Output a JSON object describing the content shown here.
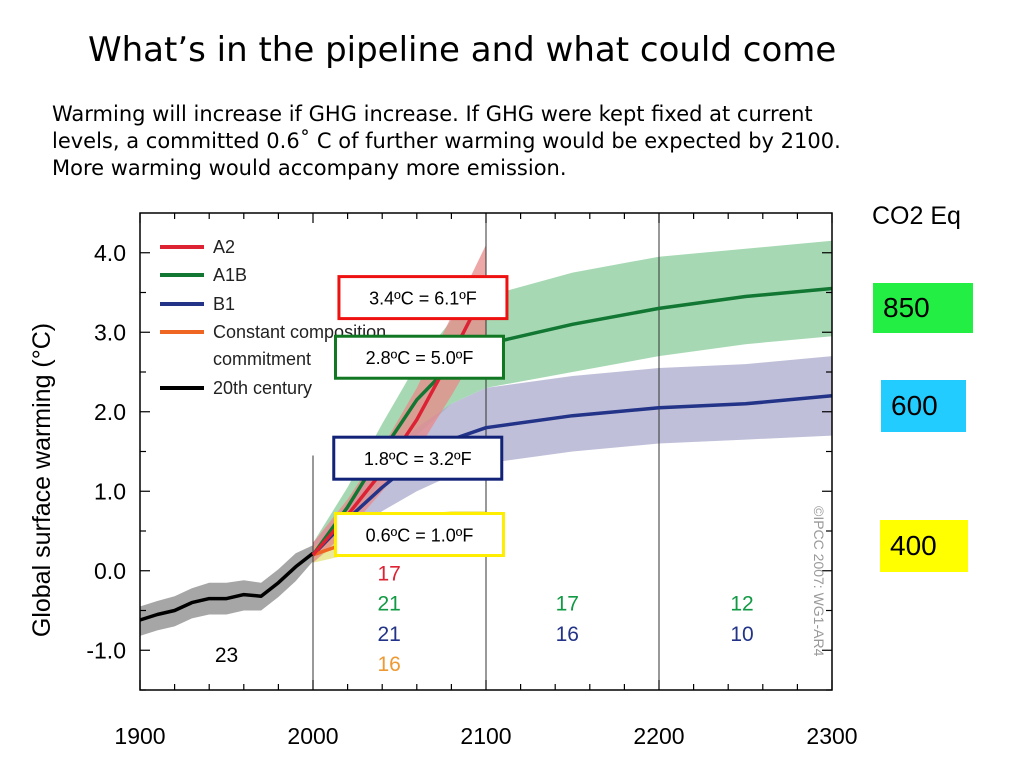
{
  "slide": {
    "title": "What’s in the pipeline and what could come",
    "body_lines": [
      "Warming will increase if GHG increase.   If GHG were kept fixed at current",
      "levels, a committed 0.6˚  C of further warming would be expected by 2100.",
      "More warming would accompany more emission."
    ]
  },
  "co2": {
    "title": "CO2 Eq",
    "boxes": [
      {
        "label": "850",
        "color": "#22ee44"
      },
      {
        "label": "600",
        "color": "#22ccff"
      },
      {
        "label": "400",
        "color": "#ffff00"
      }
    ]
  },
  "chart_data": {
    "type": "line",
    "ylabel": "Global surface warming (°C)",
    "xlabel": "",
    "xlim": [
      1900,
      2300
    ],
    "ylim": [
      -1.5,
      4.5
    ],
    "x_ticks": [
      "1900",
      "2000",
      "2100",
      "2200",
      "2300"
    ],
    "y_ticks": [
      "-1.0",
      "0.0",
      "1.0",
      "2.0",
      "3.0",
      "4.0"
    ],
    "grid": "vertical lines at 2100 and 2200",
    "legend": {
      "placement": "top-left"
    },
    "watermark": "©IPCC  2007: WG1-AR4",
    "series": [
      {
        "name": "A2",
        "color": "#dd2233",
        "band_color": "#e88a8a",
        "x": [
          2000,
          2020,
          2040,
          2060,
          2080,
          2100
        ],
        "y": [
          0.2,
          0.7,
          1.25,
          1.9,
          2.7,
          3.55
        ],
        "upper": [
          0.35,
          0.9,
          1.55,
          2.3,
          3.2,
          4.1
        ],
        "lower": [
          0.1,
          0.5,
          1.0,
          1.5,
          2.2,
          2.95
        ]
      },
      {
        "name": "A1B",
        "color": "#117733",
        "band_color": "#88cc99",
        "x": [
          2000,
          2020,
          2040,
          2060,
          2080,
          2100,
          2150,
          2200,
          2250,
          2300
        ],
        "y": [
          0.2,
          0.8,
          1.5,
          2.15,
          2.6,
          2.85,
          3.1,
          3.3,
          3.45,
          3.55
        ],
        "upper": [
          0.35,
          1.05,
          1.85,
          2.6,
          3.15,
          3.45,
          3.75,
          3.95,
          4.05,
          4.15
        ],
        "lower": [
          0.1,
          0.55,
          1.15,
          1.7,
          2.1,
          2.3,
          2.5,
          2.7,
          2.85,
          2.95
        ]
      },
      {
        "name": "B1",
        "color": "#223388",
        "band_color": "#aaaacc",
        "x": [
          2000,
          2020,
          2040,
          2060,
          2080,
          2100,
          2150,
          2200,
          2250,
          2300
        ],
        "y": [
          0.2,
          0.65,
          1.05,
          1.4,
          1.65,
          1.8,
          1.95,
          2.05,
          2.1,
          2.2
        ],
        "upper": [
          0.35,
          0.85,
          1.4,
          1.8,
          2.1,
          2.3,
          2.45,
          2.55,
          2.6,
          2.7
        ],
        "lower": [
          0.1,
          0.45,
          0.75,
          1.0,
          1.2,
          1.35,
          1.5,
          1.6,
          1.65,
          1.7
        ]
      },
      {
        "name": "Constant composition commitment",
        "color": "#ee6622",
        "band_color": "#e6e07a",
        "x": [
          2000,
          2020,
          2040,
          2060,
          2080,
          2100
        ],
        "y": [
          0.2,
          0.35,
          0.4,
          0.45,
          0.5,
          0.55
        ],
        "upper": [
          0.3,
          0.55,
          0.65,
          0.7,
          0.75,
          0.75
        ],
        "lower": [
          0.1,
          0.2,
          0.2,
          0.25,
          0.3,
          0.35
        ]
      },
      {
        "name": "20th century",
        "color": "#000000",
        "band_color": "#888888",
        "x": [
          1900,
          1910,
          1920,
          1930,
          1940,
          1950,
          1960,
          1970,
          1980,
          1990,
          2000
        ],
        "y": [
          -0.62,
          -0.55,
          -0.5,
          -0.4,
          -0.35,
          -0.35,
          -0.3,
          -0.32,
          -0.15,
          0.05,
          0.22
        ],
        "upper": [
          -0.45,
          -0.38,
          -0.32,
          -0.22,
          -0.15,
          -0.15,
          -0.12,
          -0.15,
          0.02,
          0.22,
          0.32
        ],
        "lower": [
          -0.82,
          -0.75,
          -0.7,
          -0.6,
          -0.55,
          -0.55,
          -0.5,
          -0.5,
          -0.33,
          -0.13,
          0.12
        ]
      }
    ],
    "callouts": [
      {
        "text": "3.4ºC = 6.1ºF",
        "color": "#ee1111",
        "x": 2015.0,
        "y": 3.7
      },
      {
        "text": "2.8ºC = 5.0ºF",
        "color": "#117722",
        "x": 2013.0,
        "y": 2.95
      },
      {
        "text": "1.8ºC = 3.2ºF",
        "color": "#112277",
        "x": 2012.0,
        "y": 1.68
      },
      {
        "text": "0.6ºC = 1.0ºF",
        "color": "#ffee00",
        "x": 2013.0,
        "y": 0.72
      }
    ],
    "model_counts": [
      {
        "text": "23",
        "color": "#000000",
        "x": 1950,
        "y": -1.05
      },
      {
        "text": "17",
        "color": "#dd2233",
        "x": 2044,
        "y": -0.02
      },
      {
        "text": "21",
        "color": "#119944",
        "x": 2044,
        "y": -0.4
      },
      {
        "text": "21",
        "color": "#223388",
        "x": 2044,
        "y": -0.78
      },
      {
        "text": "16",
        "color": "#ee9933",
        "x": 2044,
        "y": -1.16
      },
      {
        "text": "17",
        "color": "#119944",
        "x": 2147,
        "y": -0.4
      },
      {
        "text": "16",
        "color": "#223388",
        "x": 2147,
        "y": -0.78
      },
      {
        "text": "12",
        "color": "#119944",
        "x": 2248,
        "y": -0.4
      },
      {
        "text": "10",
        "color": "#223388",
        "x": 2248,
        "y": -0.78
      }
    ]
  }
}
